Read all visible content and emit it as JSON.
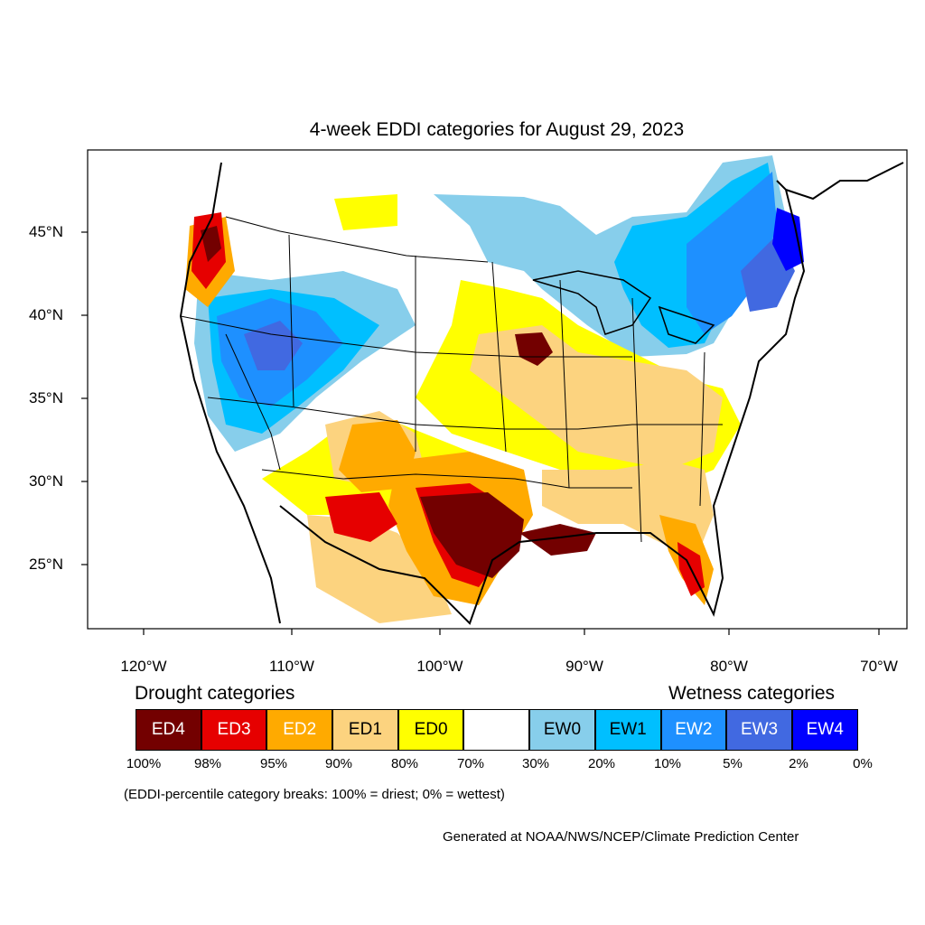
{
  "title": "4-week EDDI categories for August 29, 2023",
  "lat_labels": [
    "45°N",
    "40°N",
    "35°N",
    "30°N",
    "25°N"
  ],
  "lon_labels": [
    "120°W",
    "110°W",
    "100°W",
    "90°W",
    "80°W",
    "70°W"
  ],
  "legend": {
    "drought_heading": "Drought categories",
    "wetness_heading": "Wetness categories",
    "categories": [
      {
        "label": "ED4",
        "color": "#730000",
        "text_color": "#ffffff"
      },
      {
        "label": "ED3",
        "color": "#e60000",
        "text_color": "#ffffff"
      },
      {
        "label": "ED2",
        "color": "#ffaa00",
        "text_color": "#ffffff"
      },
      {
        "label": "ED1",
        "color": "#fcd37f",
        "text_color": "#000000"
      },
      {
        "label": "ED0",
        "color": "#ffff00",
        "text_color": "#000000"
      },
      {
        "label": "",
        "color": "#ffffff",
        "text_color": "#000000"
      },
      {
        "label": "EW0",
        "color": "#87ceeb",
        "text_color": "#000000"
      },
      {
        "label": "EW1",
        "color": "#00bfff",
        "text_color": "#000000"
      },
      {
        "label": "EW2",
        "color": "#1e90ff",
        "text_color": "#ffffff"
      },
      {
        "label": "EW3",
        "color": "#4169e1",
        "text_color": "#ffffff"
      },
      {
        "label": "EW4",
        "color": "#0000ff",
        "text_color": "#ffffff"
      }
    ],
    "percentiles": [
      "100%",
      "98%",
      "95%",
      "90%",
      "80%",
      "70%",
      "30%",
      "20%",
      "10%",
      "5%",
      "2%",
      "0%"
    ]
  },
  "breaks_note": "(EDDI-percentile category breaks: 100% = driest; 0% = wettest)",
  "generated_note": "Generated at NOAA/NWS/NCEP/Climate Prediction Center"
}
